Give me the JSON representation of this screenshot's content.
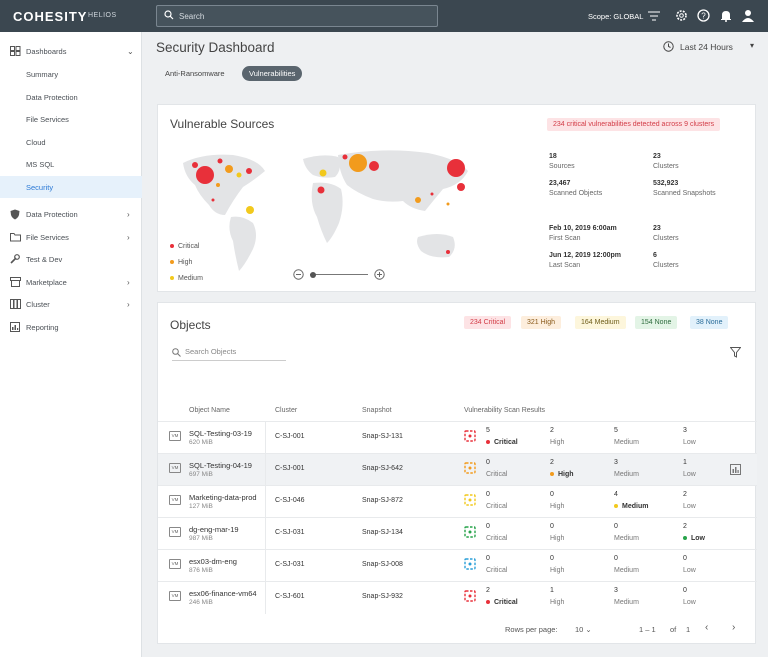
{
  "topbar": {
    "logo": "COHESITY",
    "product": "HELIOS",
    "search_placeholder": "Search",
    "scope": "Scope: GLOBAL"
  },
  "sidebar": {
    "dashboards": "Dashboards",
    "sub": [
      "Summary",
      "Data Protection",
      "File Services",
      "Cloud",
      "MS SQL",
      "Security"
    ],
    "items": [
      "Data Protection",
      "File Services",
      "Test & Dev",
      "Marketplace",
      "Cluster",
      "Reporting"
    ]
  },
  "page": {
    "title": "Security Dashboard",
    "range": "Last 24 Hours",
    "tabs": [
      "Anti-Ransomware",
      "Vulnerabilities"
    ]
  },
  "sources": {
    "title": "Vulnerable Sources",
    "alert": "234 critical vulnerabilities detected across 9 clusters",
    "legend": [
      "Critical",
      "High",
      "Medium"
    ],
    "stats": [
      {
        "v": "18",
        "l": "Sources"
      },
      {
        "v": "23",
        "l": "Clusters"
      },
      {
        "v": "23,467",
        "l": "Scanned Objects"
      },
      {
        "v": "532,923",
        "l": "Scanned Snapshots"
      },
      {
        "v": "Feb 10, 2019 6:00am",
        "l": "First Scan"
      },
      {
        "v": "23",
        "l": "Clusters"
      },
      {
        "v": "Jun 12, 2019 12:00pm",
        "l": "Last Scan"
      },
      {
        "v": "6",
        "l": "Clusters"
      }
    ]
  },
  "objects": {
    "title": "Objects",
    "chips": [
      "234 Critical",
      "321 High",
      "164 Medium",
      "154 None",
      "38 None"
    ],
    "search_placeholder": "Search Objects",
    "headers": [
      "Object Name",
      "Cluster",
      "Snapshot",
      "Vulnerability Scan Results"
    ],
    "labels": [
      "Critical",
      "High",
      "Medium",
      "Low"
    ],
    "vm_label": "VM",
    "rows": [
      {
        "name": "SQL-Testing-03-19",
        "size": "620 MiB",
        "cluster": "C-SJ-001",
        "snapshot": "Snap-SJ-131",
        "counts": [
          "5",
          "2",
          "5",
          "3"
        ],
        "sev": 0
      },
      {
        "name": "SQL-Testing-04-19",
        "size": "697 MiB",
        "cluster": "C-SJ-001",
        "snapshot": "Snap-SJ-642",
        "counts": [
          "0",
          "2",
          "3",
          "1"
        ],
        "sev": 1
      },
      {
        "name": "Marketing-data-prod",
        "size": "127 MiB",
        "cluster": "C-SJ-046",
        "snapshot": "Snap-SJ-872",
        "counts": [
          "0",
          "0",
          "4",
          "2"
        ],
        "sev": 2
      },
      {
        "name": "dg-eng-mar-19",
        "size": "987 MiB",
        "cluster": "C-SJ-031",
        "snapshot": "Snap-SJ-134",
        "counts": [
          "0",
          "0",
          "0",
          "2"
        ],
        "sev": 3
      },
      {
        "name": "esx03-dm-eng",
        "size": "876 MiB",
        "cluster": "C-SJ-031",
        "snapshot": "Snap-SJ-008",
        "counts": [
          "0",
          "0",
          "0",
          "0"
        ],
        "sev": 4
      },
      {
        "name": "esx06-finance-vm64",
        "size": "246 MiB",
        "cluster": "C-SJ-601",
        "snapshot": "Snap-SJ-932",
        "counts": [
          "2",
          "1",
          "3",
          "0"
        ],
        "sev": 0
      }
    ],
    "pagination": {
      "rows_label": "Rows per page:",
      "rows_value": "10",
      "range": "1 – 1",
      "of": "of",
      "total": "1"
    }
  },
  "colors": {
    "critical": "#e8303a",
    "high": "#f29b1d",
    "medium": "#f2c91d",
    "low": "#27a34a",
    "none": "#2a9fd8"
  }
}
